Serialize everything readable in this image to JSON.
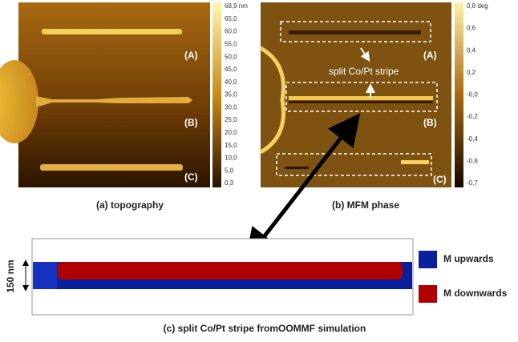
{
  "panels": [
    {
      "caption": "(a) topography",
      "labels": [
        "(A)",
        "(B)",
        "(C)"
      ],
      "colorbar": [
        "68,9 nm",
        "65,0",
        "60,0",
        "55,0",
        "50,0",
        "45,0",
        "40,0",
        "35,0",
        "30,0",
        "25,0",
        "20,0",
        "15,0",
        "10,0",
        "5,0",
        "0,3"
      ]
    },
    {
      "caption": "(b) MFM phase",
      "labels": [
        "(A)",
        "(B)",
        "(C)"
      ],
      "annotation": "split Co/Pt stripe",
      "colorbar": [
        "0,8 deg",
        "0,6",
        "0,4",
        "0,2",
        "-0,0",
        "-0,2",
        "-0,4",
        "-0,6",
        "-0,7"
      ]
    }
  ],
  "simulation": {
    "caption": "(c) split Co/Pt stripe fromOOMMF simulation",
    "scale": "150 nm",
    "legend": [
      "M upwards",
      "M downwards"
    ]
  }
}
